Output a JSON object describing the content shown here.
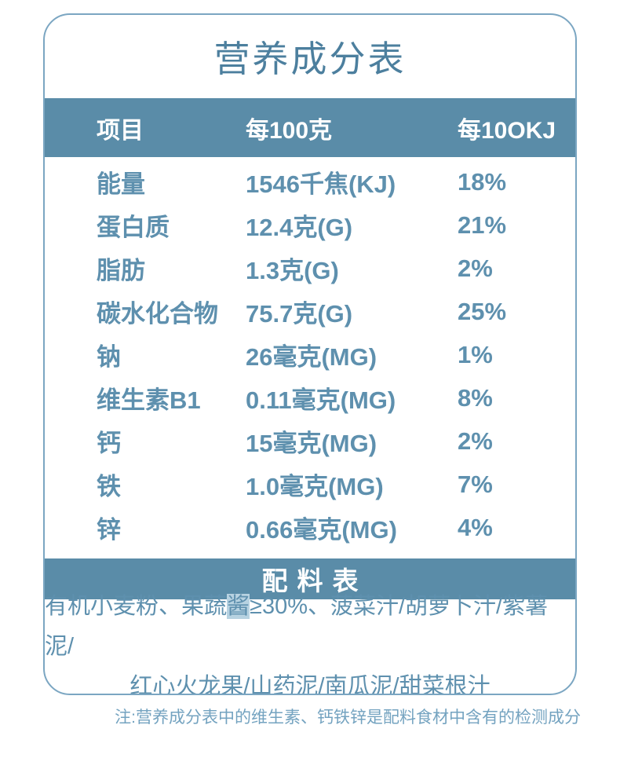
{
  "page": {
    "title": "营养成分表",
    "note": "注:营养成分表中的维生素、钙铁锌是配料食材中含有的检测成分"
  },
  "colors": {
    "band_blue": "#5A8CA8",
    "title_text": "#4C7F9E",
    "body_text": "#5E90AE",
    "note_text": "#74A3C0",
    "card_border": "#7BA6C2",
    "highlight_bg": "#B7D2E1"
  },
  "nutrition_table": {
    "headers": [
      "项目",
      "每100克",
      "每10OKJ"
    ],
    "rows": [
      {
        "item": "能量",
        "per_100g": "1546千焦(KJ)",
        "nrv": "18%"
      },
      {
        "item": "蛋白质",
        "per_100g": "12.4克(G)",
        "nrv": "21%"
      },
      {
        "item": "脂肪",
        "per_100g": "1.3克(G)",
        "nrv": "2%"
      },
      {
        "item": "碳水化合物",
        "per_100g": "75.7克(G)",
        "nrv": "25%"
      },
      {
        "item": "钠",
        "per_100g": "26毫克(MG)",
        "nrv": "1%"
      },
      {
        "item": "维生素B1",
        "per_100g": "0.11毫克(MG)",
        "nrv": "8%"
      },
      {
        "item": "钙",
        "per_100g": "15毫克(MG)",
        "nrv": "2%"
      },
      {
        "item": "铁",
        "per_100g": "1.0毫克(MG)",
        "nrv": "7%"
      },
      {
        "item": "锌",
        "per_100g": "0.66毫克(MG)",
        "nrv": "4%"
      }
    ]
  },
  "ingredients": {
    "section_title": "配料表",
    "line1_pre": "有机小麦粉、果蔬",
    "line1_highlight": "酱",
    "line1_post": "≥30%、菠菜汁/胡萝卜汁/紫薯泥/",
    "line2": "红心火龙果/山药泥/南瓜泥/甜菜根汁"
  }
}
